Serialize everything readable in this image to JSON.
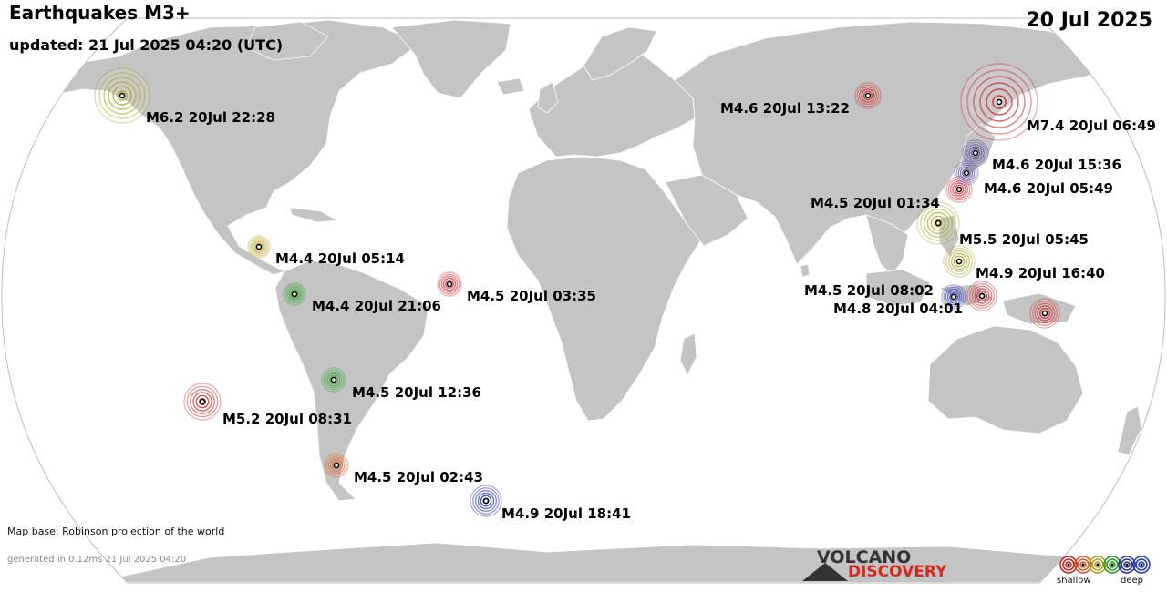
{
  "header": {
    "title": "Earthquakes M3+",
    "updated": "updated: 21 Jul 2025 04:20 (UTC)",
    "date": "20 Jul 2025"
  },
  "footer": {
    "map_base": "Map base: Robinson projection of the world",
    "generated": "generated in 0.12ms 21 Jul 2025 04:20"
  },
  "logo": {
    "top": "VOLCANO",
    "bottom": "DISCOVERY"
  },
  "legend": {
    "shallow": "shallow",
    "deep": "deep",
    "colors": [
      "#cc2222",
      "#d45a2a",
      "#b0a020",
      "#2a9a2a",
      "#3030a0",
      "#2040c0"
    ]
  },
  "colors": {
    "land": "#c4c4c4",
    "ocean": "#ffffff",
    "shallow": "#cc2222",
    "orange": "#d45a2a",
    "intermediate": "#b0a020",
    "green": "#2a9a2a",
    "purple": "#4a3a8a",
    "deep": "#2030b0"
  },
  "quakes": [
    {
      "label": "M6.2 20Jul 22:28",
      "depth_class": "intermediate",
      "magnitude": 6.2
    },
    {
      "label": "M4.4 20Jul 05:14",
      "depth_class": "intermediate",
      "magnitude": 4.4
    },
    {
      "label": "M4.4 20Jul 21:06",
      "depth_class": "green",
      "magnitude": 4.4
    },
    {
      "label": "M4.5 20Jul 03:35",
      "depth_class": "shallow",
      "magnitude": 4.5
    },
    {
      "label": "M4.5 20Jul 12:36",
      "depth_class": "green",
      "magnitude": 4.5
    },
    {
      "label": "M5.2 20Jul 08:31",
      "depth_class": "shallow",
      "magnitude": 5.2
    },
    {
      "label": "M4.5 20Jul 02:43",
      "depth_class": "orange",
      "magnitude": 4.5
    },
    {
      "label": "M4.9 20Jul 18:41",
      "depth_class": "deep",
      "magnitude": 4.9
    },
    {
      "label": "M4.6 20Jul 13:22",
      "depth_class": "shallow",
      "magnitude": 4.6
    },
    {
      "label": "M7.4 20Jul 06:49",
      "depth_class": "shallow",
      "magnitude": 7.4
    },
    {
      "label": "M4.6 20Jul 15:36",
      "depth_class": "purple",
      "magnitude": 4.6
    },
    {
      "label": "M4.6 20Jul 05:49",
      "depth_class": "shallow",
      "magnitude": 4.6
    },
    {
      "label": "M4.5 20Jul 01:34",
      "depth_class": "purple",
      "magnitude": 4.5
    },
    {
      "label": "M5.5 20Jul 05:45",
      "depth_class": "intermediate",
      "magnitude": 5.5
    },
    {
      "label": "M4.9 20Jul 16:40",
      "depth_class": "intermediate",
      "magnitude": 4.9
    },
    {
      "label": "M4.5 20Jul 08:02",
      "depth_class": "deep",
      "magnitude": 4.5
    },
    {
      "label": "M4.8 20Jul 04:01",
      "depth_class": "shallow",
      "magnitude": 4.8
    },
    {
      "label": "",
      "depth_class": "shallow",
      "magnitude": 4.8
    }
  ]
}
